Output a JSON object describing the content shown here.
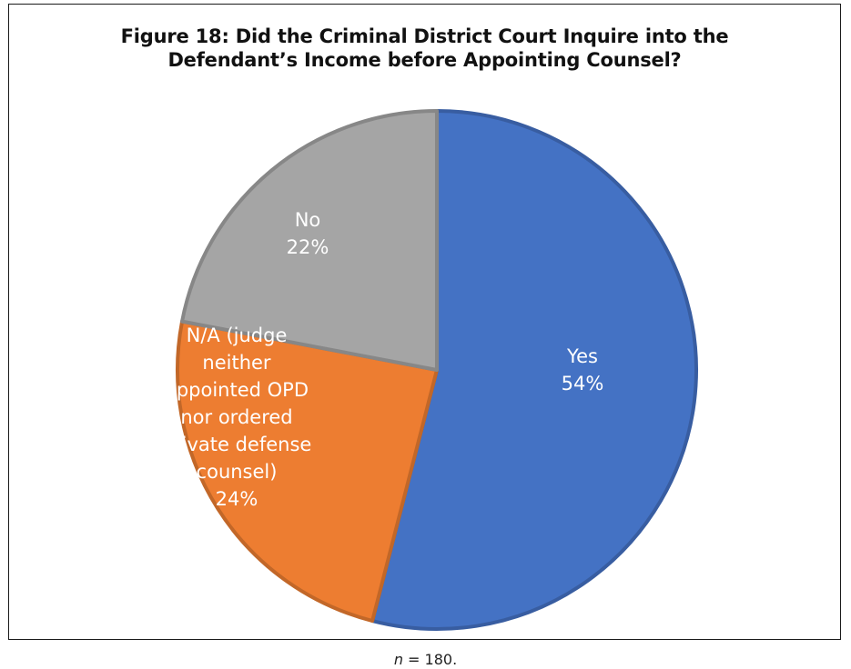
{
  "chart_data": {
    "type": "pie",
    "title": "Figure 18: Did the Criminal District Court Inquire into the\nDefendant’s Income before Appointing Counsel?",
    "start_angle_deg": 0,
    "direction": "clockwise",
    "slices": [
      {
        "label_lines": [
          "Yes"
        ],
        "value": 54,
        "display": "54%",
        "color": "#4472C4"
      },
      {
        "label_lines": [
          "N/A (judge",
          "neither",
          "appointed OPD",
          "nor ordered",
          "private defense",
          "counsel)"
        ],
        "value": 24,
        "display": "24%",
        "color": "#ED7D31"
      },
      {
        "label_lines": [
          "No"
        ],
        "value": 22,
        "display": "22%",
        "color": "#A5A5A5"
      }
    ],
    "label_color": "#ffffff"
  },
  "footnote": {
    "variable": "n",
    "text": " = 180."
  }
}
